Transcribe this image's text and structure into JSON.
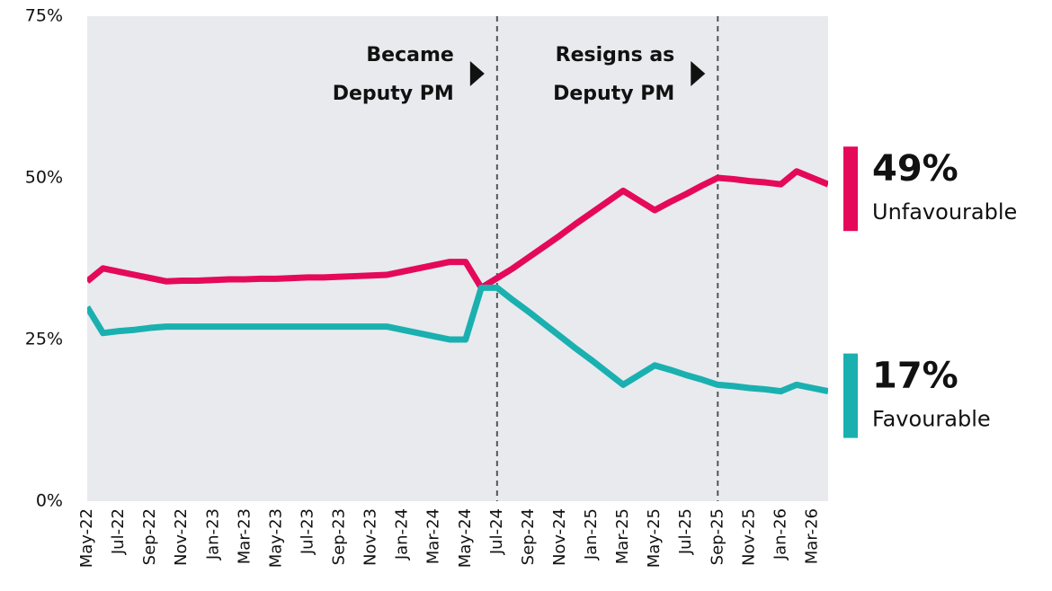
{
  "chart_data": {
    "type": "line",
    "categories": [
      "May-22",
      null,
      "Jul-22",
      null,
      "Sep-22",
      null,
      "Nov-22",
      null,
      "Jan-23",
      null,
      "Mar-23",
      null,
      "May-23",
      null,
      "Jul-23",
      null,
      "Sep-23",
      null,
      "Nov-23",
      null,
      "Jan-24",
      null,
      "Mar-24",
      null,
      "May-24",
      null,
      "Jul-24",
      null,
      "Sep-24",
      null,
      "Nov-24",
      null,
      "Jan-25",
      null,
      "Mar-25",
      null,
      "May-25",
      null,
      "Jul-25",
      null,
      "Sep-25",
      null,
      "Nov-25",
      null,
      "Jan-26",
      null,
      "Mar-26",
      null
    ],
    "series": [
      {
        "name": "Unfavourable",
        "color": "#e5095a",
        "end_label": "49%",
        "values": [
          34,
          36,
          35.5,
          35,
          34.5,
          34,
          34.1,
          34.1,
          34.2,
          34.3,
          34.3,
          34.4,
          34.4,
          34.5,
          34.6,
          34.6,
          34.7,
          34.8,
          34.9,
          35,
          35.5,
          36,
          36.5,
          37,
          37,
          33,
          34.5,
          36,
          37.7,
          39.4,
          41.1,
          42.9,
          44.6,
          46.3,
          48,
          46.5,
          45,
          46.3,
          47.5,
          48.8,
          50,
          49.8,
          49.5,
          49.3,
          49,
          51,
          50,
          49
        ]
      },
      {
        "name": "Favourable",
        "color": "#1ab0b0",
        "end_label": "17%",
        "values": [
          30,
          26,
          26.3,
          26.5,
          26.8,
          27,
          27,
          27,
          27,
          27,
          27,
          27,
          27,
          27,
          27,
          27,
          27,
          27,
          27,
          27,
          26.5,
          26,
          25.5,
          25,
          25,
          33,
          33,
          31.1,
          29.3,
          27.4,
          25.5,
          23.6,
          21.8,
          19.9,
          18,
          19.5,
          21,
          20.3,
          19.5,
          18.8,
          18,
          17.8,
          17.5,
          17.3,
          17,
          18,
          17.5,
          17
        ]
      }
    ],
    "annotations": [
      {
        "x": "Jul-24",
        "lines": [
          "Became",
          "Deputy PM"
        ]
      },
      {
        "x": "Sep-25",
        "lines": [
          "Resigns as",
          "Deputy PM"
        ]
      }
    ],
    "ylim": [
      0,
      75
    ],
    "yticks": [
      {
        "value": 0,
        "label": "0%"
      },
      {
        "value": 25,
        "label": "25%"
      },
      {
        "value": 50,
        "label": "50%"
      },
      {
        "value": 75,
        "label": "75%"
      }
    ],
    "background": "#e8eaee"
  }
}
